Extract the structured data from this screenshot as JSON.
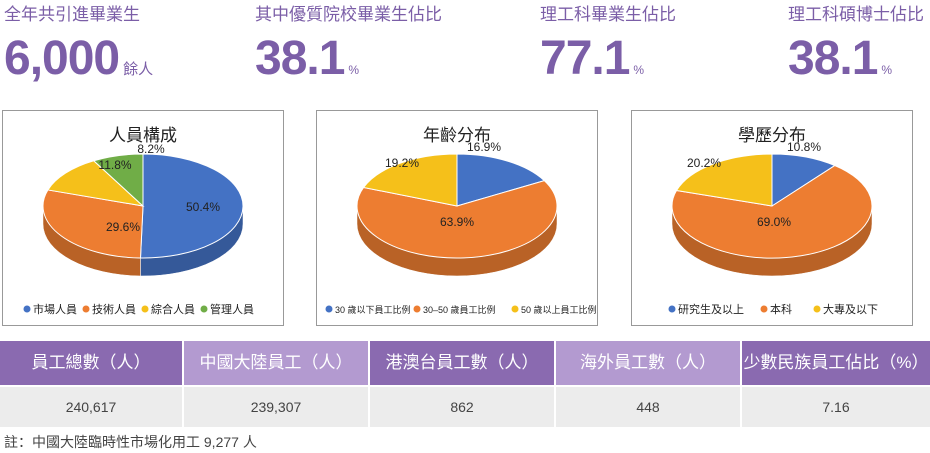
{
  "kpis": [
    {
      "label": "全年共引進畢業生",
      "value": "6,000",
      "unit": "餘人"
    },
    {
      "label": "其中優質院校畢業生佔比",
      "value": "38.1",
      "unit": "%"
    },
    {
      "label": "理工科畢業生佔比",
      "value": "77.1",
      "unit": "%"
    },
    {
      "label": "理工科碩博士佔比",
      "value": "38.1",
      "unit": "%"
    }
  ],
  "chart_data": [
    {
      "type": "pie",
      "title": "人員構成",
      "labels": [
        "市場人員",
        "技術人員",
        "綜合人員",
        "管理人員"
      ],
      "values": [
        50.4,
        29.6,
        11.8,
        8.2
      ],
      "data_labels": [
        "50.4%",
        "29.6%",
        "11.8%",
        "8.2%"
      ],
      "colors": [
        "#4472c4",
        "#ed7d31",
        "#f5c01a",
        "#70ad47"
      ],
      "legend": "bottom"
    },
    {
      "type": "pie",
      "title": "年齡分布",
      "labels": [
        "30 歲以下員工比例",
        "30–50 歲員工比例",
        "50 歲以上員工比例"
      ],
      "values": [
        16.9,
        63.9,
        19.2
      ],
      "data_labels": [
        "16.9%",
        "63.9%",
        "19.2%"
      ],
      "colors": [
        "#4472c4",
        "#ed7d31",
        "#f5c01a"
      ],
      "legend": "bottom"
    },
    {
      "type": "pie",
      "title": "學歷分布",
      "labels": [
        "研究生及以上",
        "本科",
        "大專及以下"
      ],
      "values": [
        10.8,
        69.0,
        20.2
      ],
      "data_labels": [
        "10.8%",
        "69.0%",
        "20.2%"
      ],
      "colors": [
        "#4472c4",
        "#ed7d31",
        "#f5c01a"
      ],
      "legend": "bottom"
    }
  ],
  "table": {
    "headers": [
      "員工總數（人）",
      "中國大陸員工（人）",
      "港澳台員工數（人）",
      "海外員工數（人）",
      "少數民族員工佔比（%）"
    ],
    "values": [
      "240,617",
      "239,307",
      "862",
      "448",
      "7.16"
    ]
  },
  "note": "註：中國大陸臨時性市場化用工 9,277 人"
}
